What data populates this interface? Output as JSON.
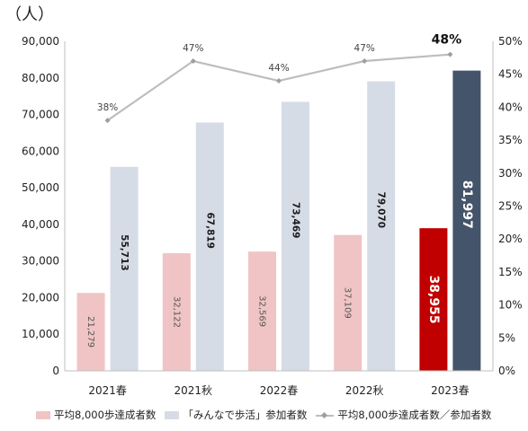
{
  "unit_label": "（人）",
  "chart_data": {
    "type": "bar",
    "categories": [
      "2021春",
      "2021秋",
      "2022春",
      "2022秋",
      "2023春"
    ],
    "series": [
      {
        "name": "平均8,000歩達成者数",
        "axis": "left",
        "values": [
          21279,
          32122,
          32569,
          37109,
          38955
        ],
        "labels": [
          "21,279",
          "32,122",
          "32,569",
          "37,109",
          "38,955"
        ],
        "color": "#f0c4c4",
        "highlight_color": "#c00000"
      },
      {
        "name": "「みんなで歩活」参加者数",
        "axis": "left",
        "values": [
          55713,
          67819,
          73469,
          79070,
          81997
        ],
        "labels": [
          "55,713",
          "67,819",
          "73,469",
          "79,070",
          "81,997"
        ],
        "color": "#d6dce6",
        "highlight_color": "#44546a"
      },
      {
        "name": "平均8,000歩達成者数／参加者数",
        "type": "line",
        "axis": "right",
        "values": [
          38,
          47,
          44,
          47,
          48
        ],
        "labels": [
          "38%",
          "47%",
          "44%",
          "47%",
          "48%"
        ],
        "color": "#bdbdbd"
      }
    ],
    "y_left": {
      "min": 0,
      "max": 90000,
      "ticks": [
        "0",
        "10,000",
        "20,000",
        "30,000",
        "40,000",
        "50,000",
        "60,000",
        "70,000",
        "80,000",
        "90,000"
      ]
    },
    "y_right": {
      "min": 0,
      "max": 50,
      "ticks": [
        "0%",
        "5%",
        "10%",
        "15%",
        "20%",
        "25%",
        "30%",
        "35%",
        "40%",
        "45%",
        "50%"
      ]
    },
    "grid": false,
    "legend_position": "bottom"
  }
}
